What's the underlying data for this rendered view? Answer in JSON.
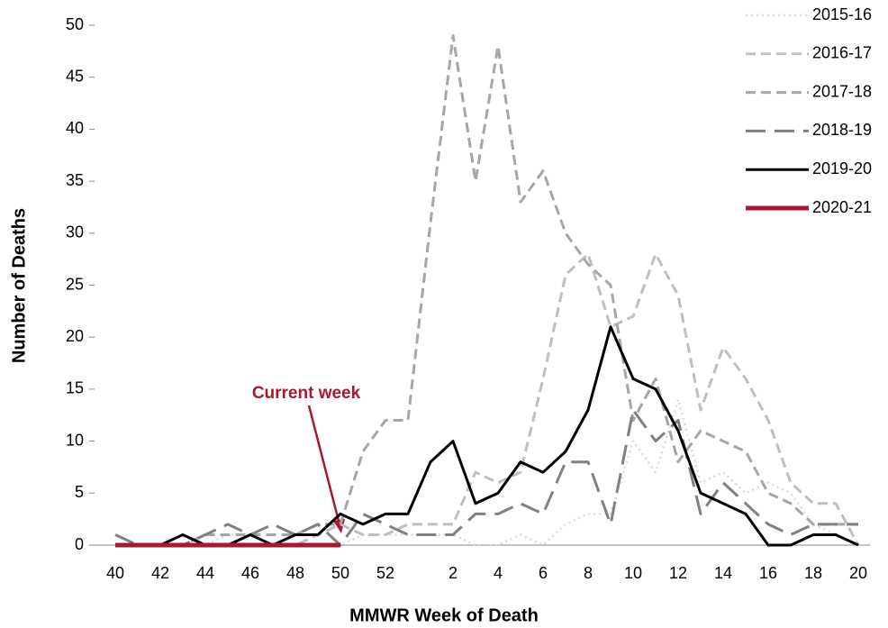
{
  "chart_data": {
    "type": "line",
    "x_label": "MMWR Week of Death",
    "y_label": "Number of Deaths",
    "annotation": "Current week",
    "annotation_color": "#a6192e",
    "categories": [
      40,
      null,
      42,
      null,
      44,
      null,
      46,
      null,
      48,
      null,
      50,
      null,
      52,
      null,
      null,
      2,
      null,
      4,
      null,
      6,
      null,
      8,
      null,
      10,
      null,
      12,
      null,
      14,
      null,
      16,
      null,
      18,
      null,
      20
    ],
    "ylim": [
      0,
      50
    ],
    "yticks": [
      0,
      5,
      10,
      15,
      20,
      25,
      30,
      35,
      40,
      45,
      50
    ],
    "grid": false,
    "legend": "top-right",
    "series": [
      {
        "name": "2015-16",
        "color": "#d9d9d9",
        "style": "dotted",
        "values": [
          0,
          0,
          0,
          0,
          0,
          1,
          1,
          0,
          0,
          0,
          0,
          1,
          1,
          1,
          1,
          1,
          0,
          0,
          1,
          0,
          2,
          3,
          3,
          10,
          7,
          14,
          6,
          7,
          5,
          6,
          5,
          2,
          1,
          0
        ]
      },
      {
        "name": "2016-17",
        "color": "#bfbfbf",
        "style": "dashed",
        "values": [
          0,
          0,
          0,
          0,
          0,
          0,
          0,
          0,
          0,
          1,
          2,
          1,
          1,
          2,
          2,
          2,
          7,
          6,
          7,
          16,
          26,
          28,
          21,
          22,
          28,
          24,
          13,
          19,
          16,
          12,
          6,
          4,
          4,
          0
        ]
      },
      {
        "name": "2017-18",
        "color": "#a6a6a6",
        "style": "dashed",
        "values": [
          0,
          0,
          0,
          0,
          1,
          1,
          1,
          1,
          1,
          2,
          2,
          9,
          12,
          12,
          31,
          49,
          35,
          48,
          33,
          36,
          30,
          27,
          25,
          12,
          16,
          8,
          11,
          10,
          9,
          5,
          4,
          2,
          2,
          2
        ]
      },
      {
        "name": "2018-19",
        "color": "#808080",
        "style": "long-dashed",
        "values": [
          1,
          0,
          0,
          0,
          1,
          2,
          1,
          2,
          1,
          2,
          0,
          3,
          2,
          1,
          1,
          1,
          3,
          3,
          4,
          3,
          8,
          8,
          2,
          13,
          10,
          12,
          3,
          6,
          4,
          2,
          1,
          2,
          2,
          2
        ]
      },
      {
        "name": "2019-20",
        "color": "#000000",
        "style": "solid",
        "values": [
          0,
          0,
          0,
          1,
          0,
          0,
          1,
          0,
          1,
          1,
          3,
          2,
          3,
          3,
          8,
          10,
          4,
          5,
          8,
          7,
          9,
          13,
          21,
          16,
          15,
          11,
          5,
          4,
          3,
          0,
          0,
          1,
          1,
          0
        ]
      },
      {
        "name": "2020-21",
        "color": "#a6192e",
        "style": "thick",
        "values": [
          0,
          0,
          0,
          0,
          0,
          0,
          0,
          0,
          0,
          0,
          0,
          null,
          null,
          null,
          null,
          null,
          null,
          null,
          null,
          null,
          null,
          null,
          null,
          null,
          null,
          null,
          null,
          null,
          null,
          null,
          null,
          null,
          null,
          null
        ]
      }
    ]
  }
}
